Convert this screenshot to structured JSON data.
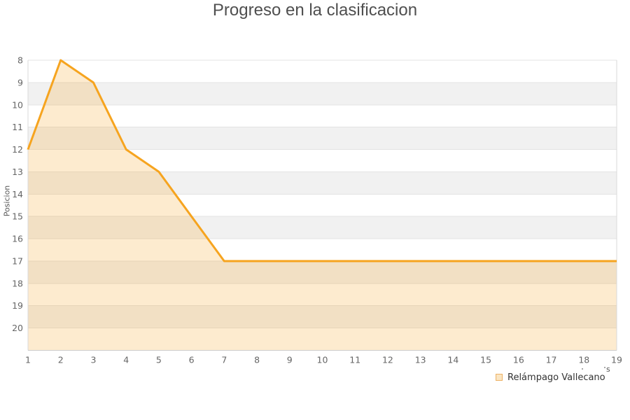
{
  "title": "Progreso en la clasificacion",
  "y_axis_title": "Posicion",
  "axis_remnant": "s",
  "legend": {
    "items": [
      {
        "label": "Relámpago Vallecano"
      }
    ]
  },
  "chart_data": {
    "type": "area",
    "title": "Progreso en la clasificacion",
    "xlabel": "",
    "ylabel": "Posicion",
    "x": [
      1,
      2,
      3,
      4,
      5,
      6,
      7,
      8,
      9,
      10,
      11,
      12,
      13,
      14,
      15,
      16,
      17,
      18,
      19
    ],
    "series": [
      {
        "name": "Relámpago Vallecano",
        "values": [
          12,
          8,
          9,
          12,
          13,
          15,
          17,
          17,
          17,
          17,
          17,
          17,
          17,
          17,
          17,
          17,
          17,
          17,
          17
        ]
      }
    ],
    "y_ticks": [
      8,
      9,
      10,
      11,
      12,
      13,
      14,
      15,
      16,
      17,
      18,
      19,
      20
    ],
    "ylim": [
      8,
      21
    ],
    "y_inverted": true,
    "grid": "horizontal-bands",
    "legend_position": "bottom-right",
    "colors": {
      "line": "#F6A41F",
      "area_fill": "rgba(247,166,35,0.22)",
      "band_light": "#FFFFFF",
      "band_dark": "#F1F1F1",
      "gridline": "#E3E3E3",
      "plot_border": "#D9D9D9",
      "axis_line": "#CCCCCC",
      "tick_text": "#666666",
      "title_text": "#4F4F4F",
      "legend_swatch_fill": "#FAE5C2",
      "legend_swatch_border": "#EDB266"
    }
  }
}
